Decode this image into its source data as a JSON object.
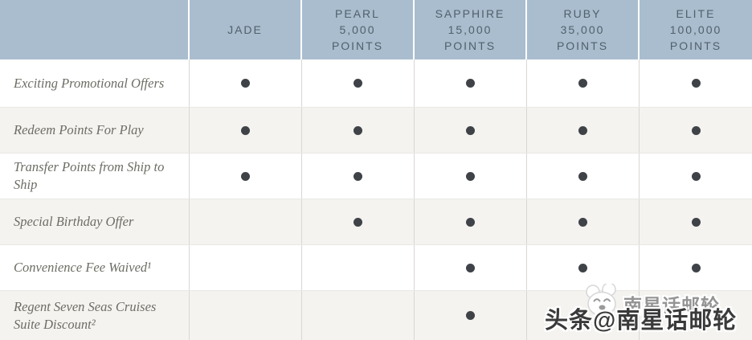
{
  "table": {
    "header": [
      "",
      "JADE",
      "PEARL\n5,000\nPOINTS",
      "SAPPHIRE\n15,000\nPOINTS",
      "RUBY\n35,000\nPOINTS",
      "ELITE\n100,000\nPOINTS"
    ],
    "rows": [
      {
        "label": "Exciting Promotional Offers",
        "dots": [
          true,
          true,
          true,
          true,
          true
        ]
      },
      {
        "label": "Redeem Points For Play",
        "dots": [
          true,
          true,
          true,
          true,
          true
        ]
      },
      {
        "label": "Transfer Points from Ship to Ship",
        "dots": [
          true,
          true,
          true,
          true,
          true
        ]
      },
      {
        "label": "Special Birthday Offer",
        "dots": [
          false,
          true,
          true,
          true,
          true
        ]
      },
      {
        "label": "Convenience Fee Waived¹",
        "dots": [
          false,
          false,
          true,
          true,
          true
        ]
      },
      {
        "label": "Regent Seven Seas Cruises Suite Discount²",
        "dots": [
          false,
          false,
          true,
          true,
          true
        ]
      }
    ]
  },
  "watermark": {
    "account_small": "南星话邮轮",
    "credit_big": "头条@南星话邮轮",
    "logo": "panda-face-icon"
  },
  "colors": {
    "header_bg": "#a9bdce",
    "header_text": "#51606c",
    "row_stripe": "#f4f3f0",
    "label_text": "#6c6d64",
    "dot": "#3f4348"
  }
}
